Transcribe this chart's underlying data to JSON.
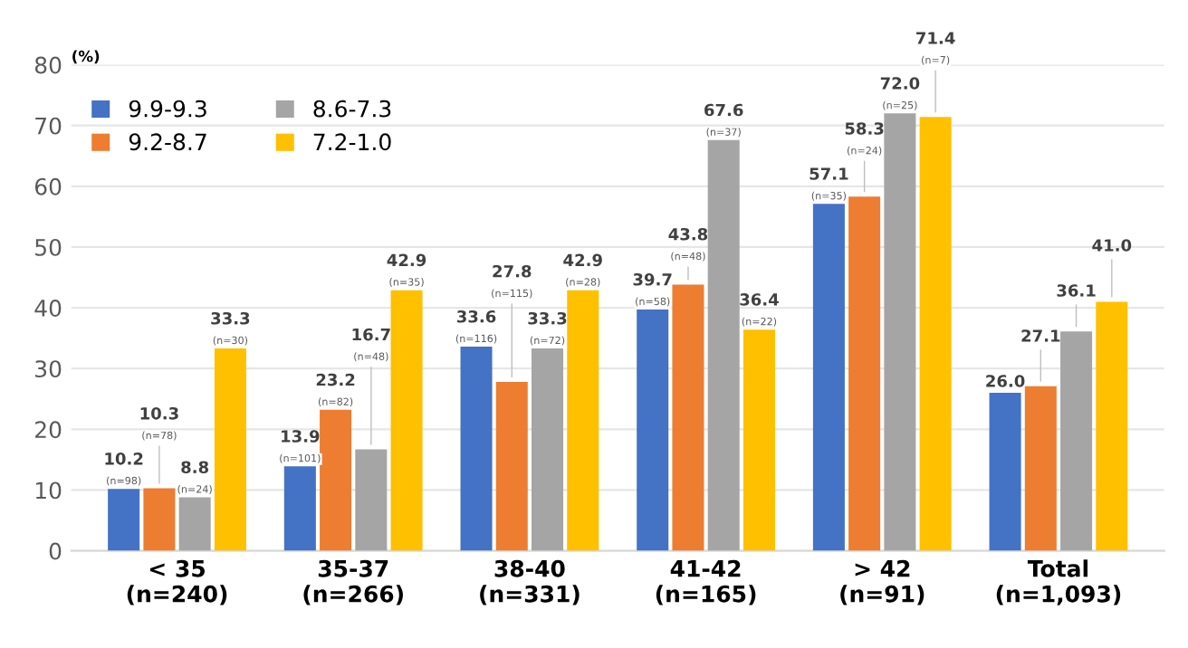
{
  "chart_data": {
    "type": "bar",
    "categories": [
      "< 35\n(n=240)",
      "35-37\n(n=266)",
      "38-40\n(n=331)",
      "41-42\n(n=165)",
      "> 42\n(n=91)",
      "Total\n(n=1,093)"
    ],
    "series": [
      {
        "name": "9.9-9.3",
        "color": "#4472c4",
        "values": [
          10.2,
          13.9,
          33.6,
          39.7,
          57.1,
          26.0
        ],
        "value_labels": [
          "10.2\n(n=98)",
          "13.9\n(n=101)",
          "33.6\n(n=116)",
          "39.7\n(n=58)",
          "57.1\n(n=35)",
          "26.0"
        ]
      },
      {
        "name": "9.2-8.7",
        "color": "#ed7d31",
        "values": [
          10.3,
          23.2,
          27.8,
          43.8,
          58.3,
          27.1
        ],
        "value_labels": [
          "10.3\n(n=78)",
          "23.2\n(n=82)",
          "27.8\n(n=115)",
          "43.8\n(n=48)",
          "58.3\n(n=24)",
          "27.1"
        ]
      },
      {
        "name": "8.6-7.3",
        "color": "#a5a5a5",
        "values": [
          8.8,
          16.7,
          33.3,
          67.6,
          72.0,
          36.1
        ],
        "value_labels": [
          "8.8\n(n=24)",
          "16.7\n(n=48)",
          "33.3\n(n=72)",
          "67.6\n(n=37)",
          "72.0\n(n=25)",
          "36.1"
        ]
      },
      {
        "name": "7.2-1.0",
        "color": "#ffc000",
        "values": [
          33.3,
          42.9,
          42.9,
          36.4,
          71.4,
          41.0
        ],
        "value_labels": [
          "33.3\n(n=30)",
          "42.9\n(n=35)",
          "42.9\n(n=28)",
          "36.4\n(n=22)",
          "71.4\n(n=7)",
          "41.0"
        ]
      }
    ],
    "ylabel": "(%)",
    "ylim": [
      0,
      80
    ],
    "yticks": [
      0,
      10,
      20,
      30,
      40,
      50,
      60,
      70,
      80
    ],
    "grid": "y",
    "legend": "top left"
  }
}
